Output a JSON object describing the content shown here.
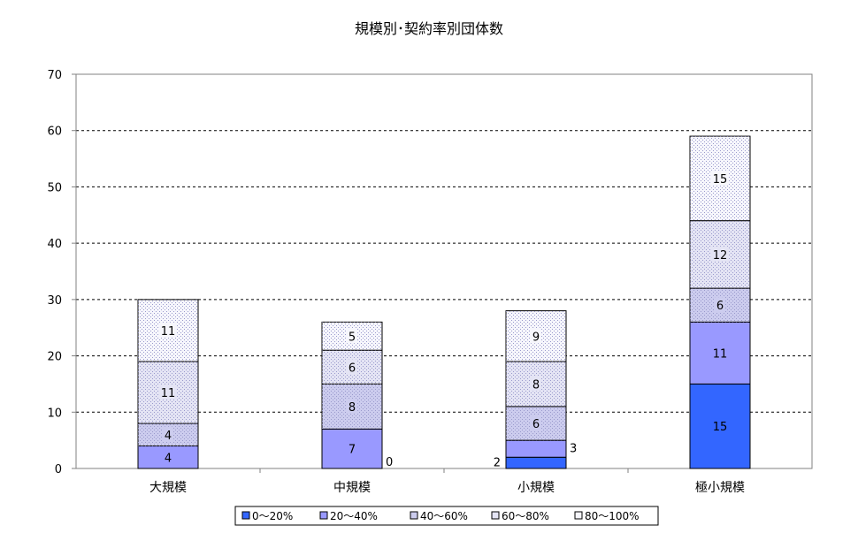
{
  "chart_data": {
    "type": "bar",
    "stacked": true,
    "title": "規模別･契約率別団体数",
    "xlabel": "",
    "ylabel": "",
    "ylim": [
      0,
      70
    ],
    "yticks": [
      0,
      10,
      20,
      30,
      40,
      50,
      60,
      70
    ],
    "grid": true,
    "legend_position": "bottom",
    "categories": [
      "大規模",
      "中規模",
      "小規模",
      "極小規模"
    ],
    "series": [
      {
        "name": "0～20%",
        "values": [
          0,
          0,
          2,
          15
        ],
        "color": "#3366ff",
        "labels": [
          "",
          "",
          "2",
          "15"
        ]
      },
      {
        "name": "20～40%",
        "values": [
          4,
          7,
          3,
          11
        ],
        "color": "#9999ff",
        "labels": [
          "4",
          "7",
          "3",
          "11"
        ]
      },
      {
        "name": "40～60%",
        "values": [
          4,
          8,
          6,
          6
        ],
        "color": "#ccccee",
        "labels": [
          "4",
          "8",
          "6",
          "6"
        ]
      },
      {
        "name": "60～80%",
        "values": [
          11,
          6,
          8,
          12
        ],
        "color": "#e4e4f4",
        "labels": [
          "11",
          "6",
          "8",
          "12"
        ]
      },
      {
        "name": "80～100%",
        "values": [
          11,
          5,
          9,
          15
        ],
        "color": "#f6f6fc",
        "labels": [
          "11",
          "5",
          "9",
          "15"
        ]
      }
    ],
    "outside_labels": [
      {
        "category_index": 1,
        "text": "0"
      }
    ]
  }
}
